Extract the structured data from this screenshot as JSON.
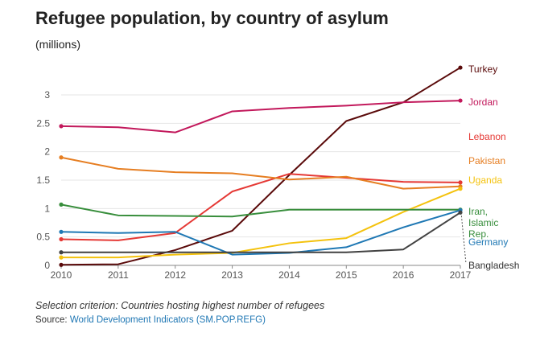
{
  "chart_data": {
    "type": "line",
    "title": "Refugee population, by country of asylum",
    "subtitle": "(millions)",
    "x": [
      2010,
      2011,
      2012,
      2013,
      2014,
      2015,
      2016,
      2017
    ],
    "ylim": [
      0,
      3.5
    ],
    "yticks": [
      "0",
      "0.5",
      "1",
      "1.5",
      "2",
      "2.5",
      "3"
    ],
    "grid": true,
    "series": [
      {
        "name": "Turkey",
        "color": "#5a0a0a",
        "values": [
          0.01,
          0.02,
          0.27,
          0.61,
          1.59,
          2.54,
          2.87,
          3.48
        ]
      },
      {
        "name": "Jordan",
        "color": "#c2185b",
        "values": [
          2.45,
          2.43,
          2.34,
          2.71,
          2.77,
          2.81,
          2.87,
          2.9
        ]
      },
      {
        "name": "Lebanon",
        "color": "#e53935",
        "values": [
          0.46,
          0.44,
          0.57,
          1.3,
          1.61,
          1.54,
          1.47,
          1.46
        ]
      },
      {
        "name": "Pakistan",
        "color": "#e67e22",
        "values": [
          1.9,
          1.7,
          1.64,
          1.62,
          1.51,
          1.56,
          1.35,
          1.39
        ]
      },
      {
        "name": "Uganda",
        "color": "#f4c20d",
        "values": [
          0.14,
          0.14,
          0.19,
          0.22,
          0.39,
          0.48,
          0.94,
          1.35
        ]
      },
      {
        "name": "Iran, Islamic Rep.",
        "color": "#388e3c",
        "values": [
          1.07,
          0.88,
          0.87,
          0.86,
          0.98,
          0.98,
          0.98,
          0.98
        ]
      },
      {
        "name": "Germany",
        "color": "#1f78b4",
        "values": [
          0.59,
          0.57,
          0.59,
          0.19,
          0.22,
          0.32,
          0.67,
          0.97
        ]
      },
      {
        "name": "Bangladesh",
        "color": "#424242",
        "values": [
          0.23,
          0.23,
          0.23,
          0.23,
          0.23,
          0.23,
          0.28,
          0.93
        ]
      }
    ],
    "labels": [
      "Turkey",
      "Jordan",
      "Lebanon",
      "Pakistan",
      "Uganda",
      "Iran,",
      "Islamic",
      "Rep.",
      "Germany",
      "Bangladesh"
    ]
  },
  "footer": {
    "note": "Selection criterion: Countries hosting highest number of refugees",
    "source_prefix": "Source: ",
    "source_link": "World Development Indicators (SM.POP.REFG)"
  }
}
